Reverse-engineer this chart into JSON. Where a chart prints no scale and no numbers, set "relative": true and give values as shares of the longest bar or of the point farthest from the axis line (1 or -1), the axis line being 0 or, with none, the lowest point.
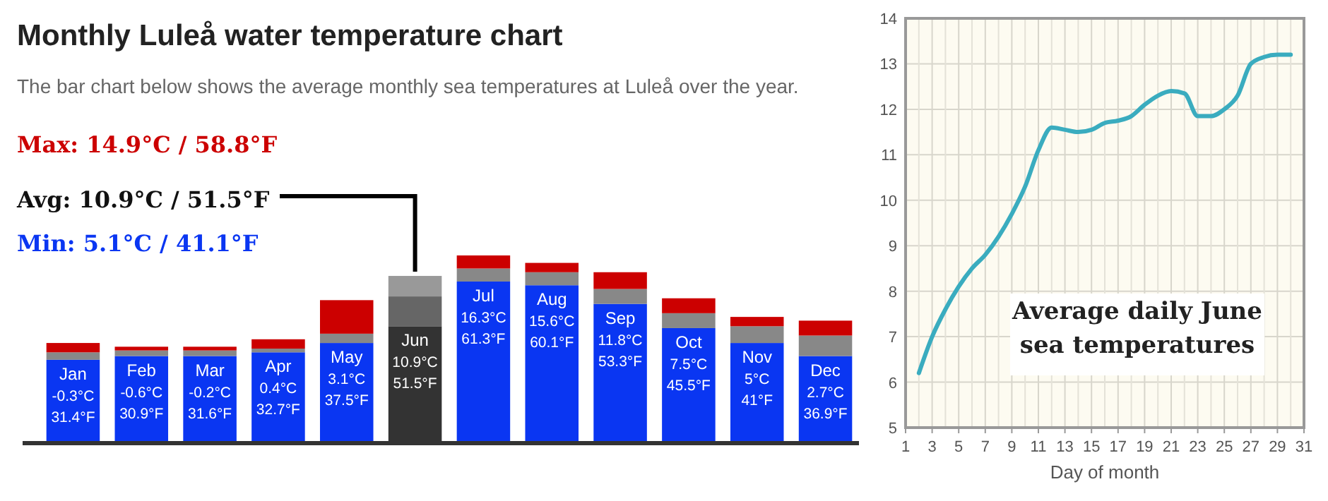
{
  "chart_data": [
    {
      "type": "bar",
      "title": "Monthly Luleå water temperature chart",
      "subtitle": "The bar chart below shows the average monthly sea temperatures at Luleå over the year.",
      "annotations": [
        "Max: 14.9°C / 58.8°F",
        "Avg: 10.9°C / 51.5°F",
        "Min: 5.1°C / 41.1°F",
        {
          "text": "-0.3°C\n31.4°F",
          "x": "Jan",
          "y": 0.44
        },
        {
          "text": "-0.6°C\n30.9°F",
          "x": "Feb",
          "y": 0.46
        },
        {
          "text": "-0.2°C\n31.6°F",
          "x": "Mar",
          "y": 0.46
        },
        {
          "text": "0.4°C\n32.7°F",
          "x": "Apr",
          "y": 0.48
        },
        {
          "text": "3.1°C\n37.5°F",
          "x": "May",
          "y": 0.53
        },
        {
          "text": "10.9°C\n51.5°F",
          "x": "Jun",
          "y": 0.62
        },
        {
          "text": "16.3°C\n61.3°F",
          "x": "Jul",
          "y": 0.86
        },
        {
          "text": "15.6°C\n60.1°F",
          "x": "Aug",
          "y": 0.84
        },
        {
          "text": "11.8°C\n53.3°F",
          "x": "Sep",
          "y": 0.74
        },
        {
          "text": "7.5°C\n45.5°F",
          "x": "Oct",
          "y": 0.61
        },
        {
          "text": "5°C\n41°F",
          "x": "Nov",
          "y": 0.53
        },
        {
          "text": "2.7°C\n36.9°F",
          "x": "Dec",
          "y": 0.46
        }
      ],
      "categories": [
        "Jan",
        "Feb",
        "Mar",
        "Apr",
        "May",
        "Jun",
        "Jul",
        "Aug",
        "Sep",
        "Oct",
        "Nov",
        "Dec"
      ],
      "stacked": true,
      "relative": true,
      "series": [
        {
          "colors": [
            "#0a36f2",
            "#0a36f2",
            "#0a36f2",
            "#0a36f2",
            "#0a36f2",
            "#333333",
            "#0a36f2",
            "#0a36f2",
            "#0a36f2",
            "#0a36f2",
            "#0a36f2",
            "#0a36f2"
          ],
          "values": [
            0.44,
            0.46,
            0.46,
            0.48,
            0.53,
            0.62,
            0.86,
            0.84,
            0.74,
            0.61,
            0.53,
            0.46
          ]
        },
        {
          "colors": [
            "#888888",
            "#888888",
            "#888888",
            "#888888",
            "#888888",
            "#666666",
            "#888888",
            "#888888",
            "#888888",
            "#888888",
            "#888888",
            "#888888"
          ],
          "values": [
            0.04,
            0.03,
            0.03,
            0.02,
            0.05,
            0.16,
            0.07,
            0.07,
            0.08,
            0.08,
            0.09,
            0.11
          ]
        },
        {
          "colors": [
            "#cc0000",
            "#cc0000",
            "#cc0000",
            "#cc0000",
            "#cc0000",
            "#999999",
            "#cc0000",
            "#cc0000",
            "#cc0000",
            "#cc0000",
            "#cc0000",
            "#cc0000"
          ],
          "values": [
            0.05,
            0.02,
            0.02,
            0.05,
            0.18,
            0.11,
            0.07,
            0.05,
            0.09,
            0.08,
            0.05,
            0.08
          ]
        }
      ]
    },
    {
      "type": "line",
      "xlabel": "Day of month",
      "annotations": [
        "Average daily June sea temperatures"
      ],
      "xlim": [
        1,
        31
      ],
      "xticks": [
        1,
        3,
        5,
        7,
        9,
        11,
        13,
        15,
        17,
        19,
        21,
        23,
        25,
        27,
        29,
        31
      ],
      "ylim": [
        5,
        14
      ],
      "yticks": [
        5,
        6,
        7,
        8,
        9,
        10,
        11,
        12,
        13,
        14
      ],
      "grid": true,
      "marker": "none",
      "series": [
        {
          "color": "#3aacbf",
          "x": [
            2,
            3,
            4,
            5,
            6,
            7,
            8,
            9,
            10,
            11,
            12,
            13,
            14,
            15,
            16,
            17,
            18,
            19,
            20,
            21,
            22,
            23,
            24,
            25,
            26,
            27,
            28,
            29,
            30
          ],
          "values": [
            6.2,
            7.0,
            7.6,
            8.1,
            8.5,
            8.8,
            9.2,
            9.7,
            10.3,
            11.1,
            11.6,
            11.55,
            11.5,
            11.55,
            11.7,
            11.75,
            11.85,
            12.1,
            12.3,
            12.4,
            12.35,
            11.85,
            11.85,
            12.0,
            12.3,
            13.0,
            13.15,
            13.2,
            13.2
          ]
        }
      ]
    }
  ]
}
